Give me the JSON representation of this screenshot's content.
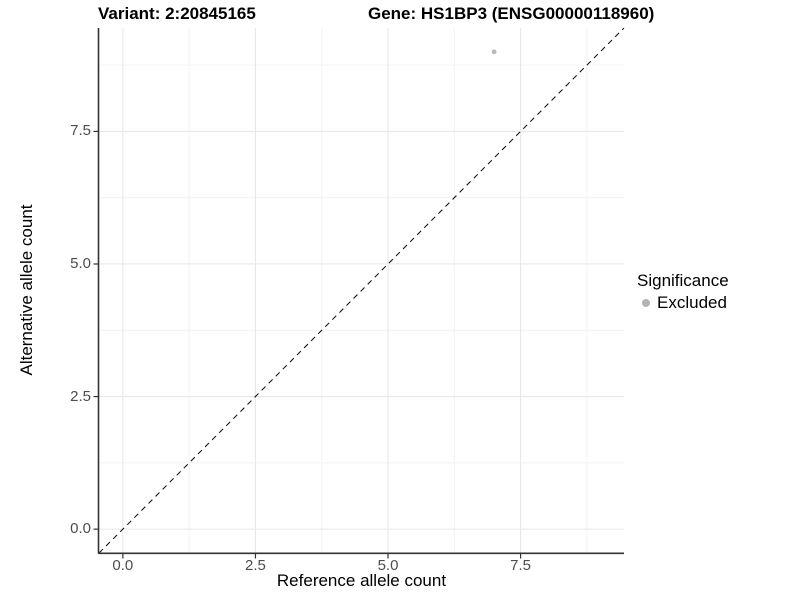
{
  "chart_data": {
    "type": "scatter",
    "titles": {
      "left": "Variant: 2:20845165",
      "right": "Gene: HS1BP3 (ENSG00000118960)"
    },
    "xlabel": "Reference allele count",
    "ylabel": "Alternative allele count",
    "xlim": [
      -0.45,
      9.45
    ],
    "ylim": [
      -0.45,
      9.45
    ],
    "x_ticks": [
      {
        "value": 0,
        "label": "0.0"
      },
      {
        "value": 2.5,
        "label": "2.5"
      },
      {
        "value": 5,
        "label": "5.0"
      },
      {
        "value": 7.5,
        "label": "7.5"
      }
    ],
    "y_ticks": [
      {
        "value": 0,
        "label": "0.0"
      },
      {
        "value": 2.5,
        "label": "2.5"
      },
      {
        "value": 5,
        "label": "5.0"
      },
      {
        "value": 7.5,
        "label": "7.5"
      }
    ],
    "x_minor_ticks": [
      1.25,
      3.75,
      6.25,
      8.75
    ],
    "y_minor_ticks": [
      1.25,
      3.75,
      6.25,
      8.75
    ],
    "grid": {
      "major_color": "#e8e8e8",
      "minor_color": "#f3f3f3"
    },
    "axis": {
      "line_color": "#333333",
      "tick_color": "#333333",
      "tick_label_color": "#4d4d4d"
    },
    "identity_line": {
      "slope": 1,
      "intercept": 0,
      "style": "dashed",
      "color": "#1a1a1a"
    },
    "series": [
      {
        "name": "Excluded",
        "color": "#b9b9b9",
        "point_radius": 2.4,
        "points": [
          {
            "x": 7,
            "y": 9
          }
        ]
      }
    ]
  },
  "legend": {
    "title": "Significance",
    "items": [
      {
        "label": "Excluded",
        "color": "#b3b3b3",
        "marker": "circle"
      }
    ]
  }
}
